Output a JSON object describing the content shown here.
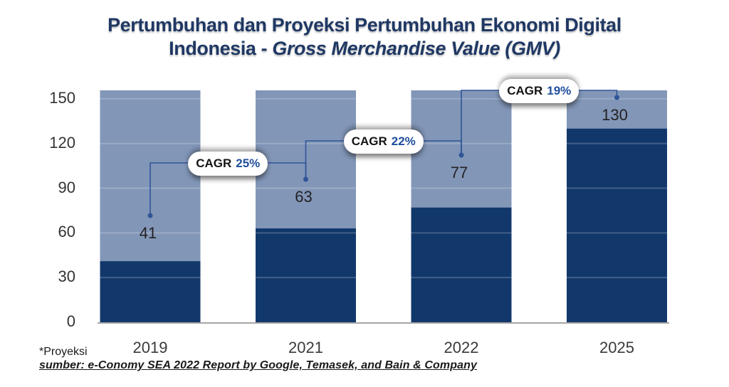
{
  "title": {
    "line1": "Pertumbuhan dan Proyeksi Pertumbuhan Ekonomi Digital",
    "line2_plain": "Indonesia - ",
    "line2_italic": "Gross Merchandise Value (GMV)"
  },
  "footer": {
    "note": "*Proyeksi",
    "source": "sumber: e-Conomy SEA 2022 Report by Google, Temasek, and Bain & Company"
  },
  "chart_data": {
    "type": "bar",
    "title": "Pertumbuhan dan Proyeksi Pertumbuhan Ekonomi Digital Indonesia - Gross Merchandise Value (GMV)",
    "categories": [
      "2019",
      "2021",
      "2022",
      "2025"
    ],
    "values": [
      41,
      63,
      77,
      130
    ],
    "value_labels": [
      "41",
      "63",
      "77",
      "130"
    ],
    "y_ticks": [
      0,
      30,
      60,
      90,
      120,
      150
    ],
    "ylim": [
      0,
      155.7
    ],
    "grid": true,
    "background_bars_full_height": true,
    "legend": "none",
    "annotations": [
      {
        "text": "CAGR",
        "pct": "25%",
        "between": [
          "2019",
          "2021"
        ]
      },
      {
        "text": "CAGR",
        "pct": "22%",
        "between": [
          "2021",
          "2022"
        ]
      },
      {
        "text": "CAGR",
        "pct": "19%",
        "between": [
          "2022",
          "2025"
        ]
      }
    ],
    "colors": {
      "bar": "#12386B",
      "bar_background": "#8296B8",
      "title": "#1F3864",
      "accent_text": "#1F4E9D",
      "connector": "#2F5597",
      "axis_line": "#A6A6A6",
      "tick_text": "#333333",
      "value_text": "#222222"
    }
  }
}
